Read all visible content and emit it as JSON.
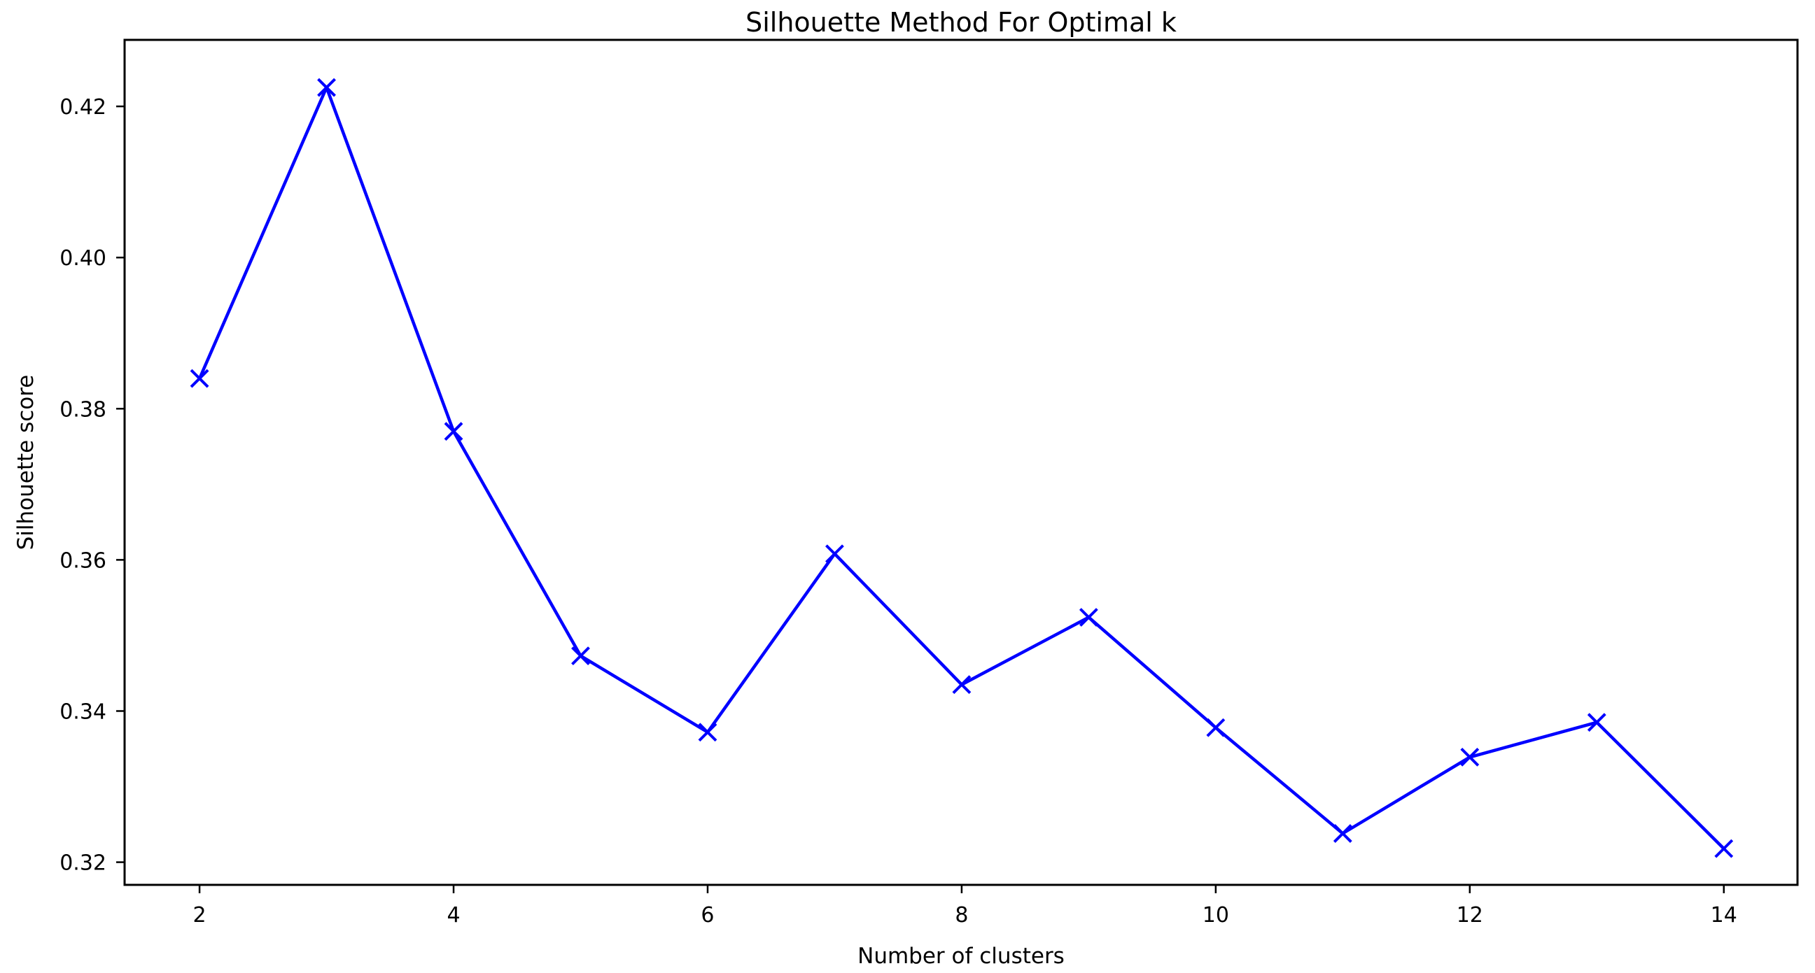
{
  "figure": {
    "background": "#ffffff",
    "text_color": "#000000",
    "spine_color": "#000000"
  },
  "chart_data": {
    "type": "line",
    "title": "Silhouette Method For Optimal k",
    "xlabel": "Number of clusters",
    "ylabel": "Silhouette score",
    "x": [
      2,
      3,
      4,
      5,
      6,
      7,
      8,
      9,
      10,
      11,
      12,
      13,
      14
    ],
    "y": [
      0.384,
      0.4225,
      0.377,
      0.3473,
      0.3372,
      0.3608,
      0.3435,
      0.3524,
      0.3378,
      0.3238,
      0.3339,
      0.3385,
      0.3218
    ],
    "line_color": "#0000ff",
    "marker": "x",
    "marker_color": "#0000ff",
    "xlim": [
      1.41,
      14.58
    ],
    "ylim": [
      0.317,
      0.4288
    ],
    "x_ticks": [
      2,
      4,
      6,
      8,
      10,
      12,
      14
    ],
    "x_tick_labels": [
      "2",
      "4",
      "6",
      "8",
      "10",
      "12",
      "14"
    ],
    "y_ticks": [
      0.32,
      0.34,
      0.36,
      0.38,
      0.4,
      0.42
    ],
    "y_tick_labels": [
      "0.32",
      "0.34",
      "0.36",
      "0.38",
      "0.40",
      "0.42"
    ],
    "grid": false,
    "legend": "none"
  }
}
